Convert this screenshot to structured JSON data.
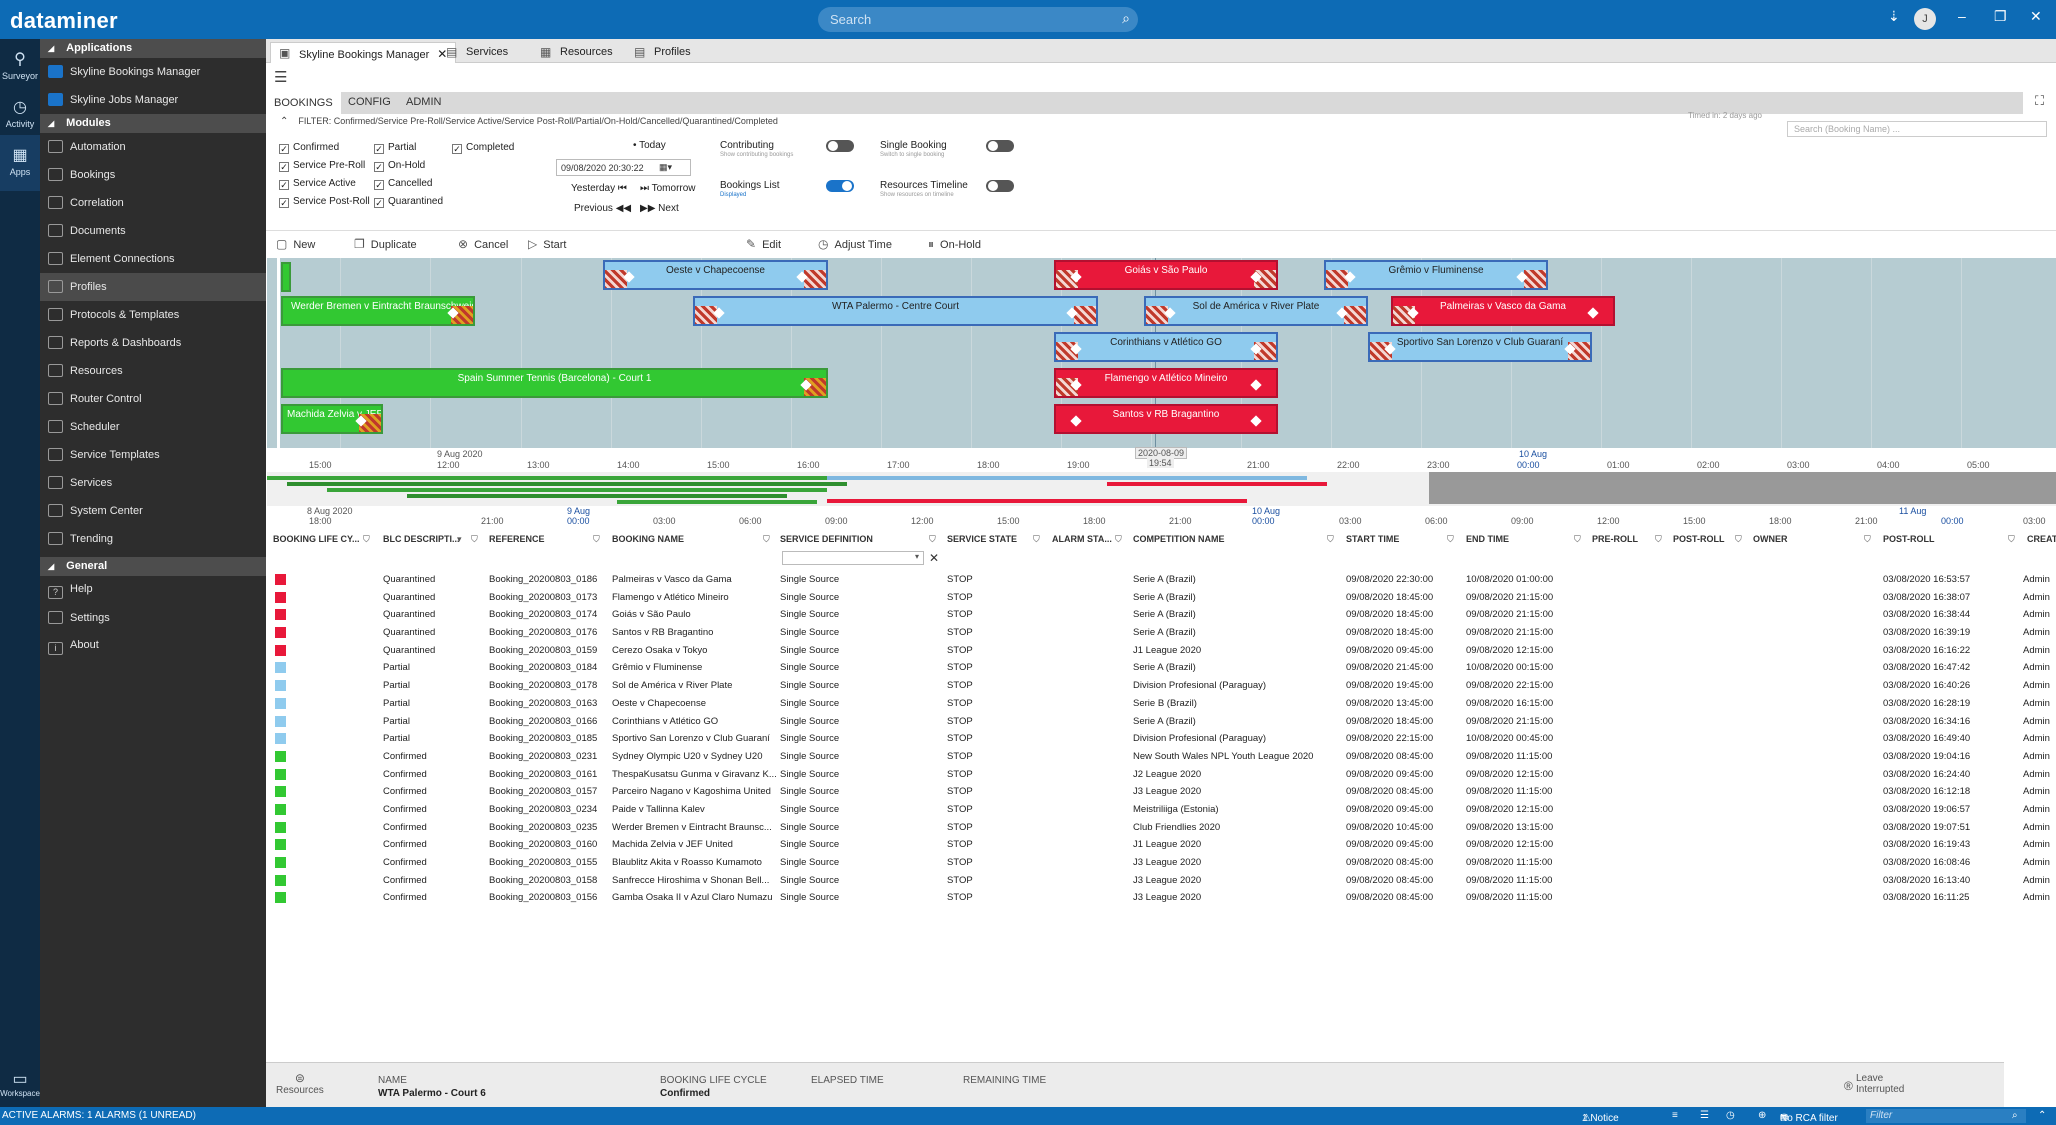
{
  "app": {
    "logo": "dataminer",
    "search_placeholder": "Search",
    "user_initial": "J"
  },
  "rail": [
    {
      "label": "Surveyor"
    },
    {
      "label": "Activity"
    },
    {
      "label": "Apps"
    }
  ],
  "workspace_label": "Workspace",
  "nav": {
    "applications_header": "Applications",
    "applications": [
      "Skyline Bookings Manager",
      "Skyline Jobs Manager"
    ],
    "modules_header": "Modules",
    "modules": [
      "Automation",
      "Bookings",
      "Correlation",
      "Documents",
      "Element Connections",
      "Profiles",
      "Protocols & Templates",
      "Reports & Dashboards",
      "Resources",
      "Router Control",
      "Scheduler",
      "Service Templates",
      "Services",
      "System Center",
      "Trending"
    ],
    "general_header": "General",
    "general": [
      "Help",
      "Settings",
      "About"
    ]
  },
  "tabs": [
    {
      "label": "Skyline Bookings Manager"
    },
    {
      "label": "Services"
    },
    {
      "label": "Resources"
    },
    {
      "label": "Profiles"
    }
  ],
  "subtabs": [
    "BOOKINGS",
    "CONFIG",
    "ADMIN"
  ],
  "filter_text": "FILTER: Confirmed/Service Pre-Roll/Service Active/Service Post-Roll/Partial/On-Hold/Cancelled/Quarantined/Completed",
  "filter_hint": "Timed in: 2 days ago",
  "booking_search_placeholder": "Search (Booking Name) ...",
  "checks": {
    "col1": [
      "Confirmed",
      "Service Pre-Roll",
      "Service Active",
      "Service Post-Roll"
    ],
    "col2": [
      "Partial",
      "On-Hold",
      "Cancelled",
      "Quarantined"
    ],
    "col3": [
      "Completed"
    ]
  },
  "datenav": {
    "today": "Today",
    "date": "09/08/2020 20:30:22",
    "yesterday": "Yesterday",
    "tomorrow": "Tomorrow",
    "previous": "Previous",
    "next": "Next"
  },
  "toggles": {
    "contributing": "Contributing",
    "contributing_sub": "Show contributing bookings",
    "single": "Single Booking",
    "single_sub": "Switch to single booking",
    "blist": "Bookings List",
    "blist_sub": "Displayed",
    "rtl": "Resources Timeline",
    "rtl_sub": "Show resources on timeline"
  },
  "toolbar": {
    "new": "New",
    "duplicate": "Duplicate",
    "cancel": "Cancel",
    "start": "Start",
    "edit": "Edit",
    "adjust": "Adjust Time",
    "onhold": "On-Hold"
  },
  "timeline": {
    "bars": [
      "Oeste v Chapecoense",
      "Goiás v São Paulo",
      "Grêmio v Fluminense",
      "Werder Bremen v Eintracht Braunschweig",
      "WTA Palermo - Centre Court",
      "Sol de América v River Plate",
      "Palmeiras v Vasco da Gama",
      "Corinthians v Atlético GO",
      "Sportivo San Lorenzo v Club Guaraní",
      "Spain Summer Tennis (Barcelona) - Court 1",
      "Flamengo v Atlético Mineiro",
      "Machida Zelvia v JEF...",
      "Santos v RB Bragantino"
    ],
    "date1": "9 Aug 2020",
    "date2": "10 Aug",
    "cursor": "2020-08-09",
    "cursor_time": "19:54",
    "ticks": [
      "15:00",
      "12:00",
      "13:00",
      "14:00",
      "15:00",
      "16:00",
      "17:00",
      "18:00",
      "19:00",
      "20:00",
      "21:00",
      "22:00",
      "23:00",
      "00:00",
      "01:00",
      "02:00",
      "03:00",
      "04:00",
      "05:00"
    ],
    "ov_ticks": [
      "18:00",
      "21:00",
      "00:00",
      "03:00",
      "06:00",
      "09:00",
      "12:00",
      "15:00",
      "18:00",
      "21:00",
      "00:00",
      "03:00",
      "06:00",
      "09:00",
      "12:00",
      "15:00",
      "18:00",
      "21:00",
      "00:00",
      "03:00"
    ],
    "ov_dates": [
      "8 Aug 2020",
      "9 Aug",
      "10 Aug",
      "11 Aug"
    ]
  },
  "columns": [
    "BOOKING LIFE CY...",
    "BLC DESCRIPTI...",
    "REFERENCE",
    "BOOKING NAME",
    "SERVICE DEFINITION",
    "SERVICE STATE",
    "ALARM STA...",
    "COMPETITION NAME",
    "START TIME",
    "END TIME",
    "PRE-ROLL",
    "POST-ROLL",
    "OWNER",
    "POST-ROLL",
    "CREATI"
  ],
  "rows": [
    {
      "color": "#e8183a",
      "blc": "Quarantined",
      "ref": "Booking_20200803_0186",
      "name": "Palmeiras v Vasco da Gama",
      "svc": "Single Source",
      "state": "STOP",
      "comp": "Serie A (Brazil)",
      "start": "09/08/2020 22:30:00",
      "end": "10/08/2020 01:00:00",
      "created": "03/08/2020 16:53:57",
      "owner": "Admin"
    },
    {
      "color": "#e8183a",
      "blc": "Quarantined",
      "ref": "Booking_20200803_0173",
      "name": "Flamengo v Atlético Mineiro",
      "svc": "Single Source",
      "state": "STOP",
      "comp": "Serie A (Brazil)",
      "start": "09/08/2020 18:45:00",
      "end": "09/08/2020 21:15:00",
      "created": "03/08/2020 16:38:07",
      "owner": "Admin"
    },
    {
      "color": "#e8183a",
      "blc": "Quarantined",
      "ref": "Booking_20200803_0174",
      "name": "Goiás v São Paulo",
      "svc": "Single Source",
      "state": "STOP",
      "comp": "Serie A (Brazil)",
      "start": "09/08/2020 18:45:00",
      "end": "09/08/2020 21:15:00",
      "created": "03/08/2020 16:38:44",
      "owner": "Admin"
    },
    {
      "color": "#e8183a",
      "blc": "Quarantined",
      "ref": "Booking_20200803_0176",
      "name": "Santos v RB Bragantino",
      "svc": "Single Source",
      "state": "STOP",
      "comp": "Serie A (Brazil)",
      "start": "09/08/2020 18:45:00",
      "end": "09/08/2020 21:15:00",
      "created": "03/08/2020 16:39:19",
      "owner": "Admin"
    },
    {
      "color": "#e8183a",
      "blc": "Quarantined",
      "ref": "Booking_20200803_0159",
      "name": "Cerezo Osaka v Tokyo",
      "svc": "Single Source",
      "state": "STOP",
      "comp": "J1 League 2020",
      "start": "09/08/2020 09:45:00",
      "end": "09/08/2020 12:15:00",
      "created": "03/08/2020 16:16:22",
      "owner": "Admin"
    },
    {
      "color": "#8fcbee",
      "blc": "Partial",
      "ref": "Booking_20200803_0184",
      "name": "Grêmio v Fluminense",
      "svc": "Single Source",
      "state": "STOP",
      "comp": "Serie A (Brazil)",
      "start": "09/08/2020 21:45:00",
      "end": "10/08/2020 00:15:00",
      "created": "03/08/2020 16:47:42",
      "owner": "Admin"
    },
    {
      "color": "#8fcbee",
      "blc": "Partial",
      "ref": "Booking_20200803_0178",
      "name": "Sol de América v River Plate",
      "svc": "Single Source",
      "state": "STOP",
      "comp": "Division Profesional (Paraguay)",
      "start": "09/08/2020 19:45:00",
      "end": "09/08/2020 22:15:00",
      "created": "03/08/2020 16:40:26",
      "owner": "Admin"
    },
    {
      "color": "#8fcbee",
      "blc": "Partial",
      "ref": "Booking_20200803_0163",
      "name": "Oeste v Chapecoense",
      "svc": "Single Source",
      "state": "STOP",
      "comp": "Serie B (Brazil)",
      "start": "09/08/2020 13:45:00",
      "end": "09/08/2020 16:15:00",
      "created": "03/08/2020 16:28:19",
      "owner": "Admin"
    },
    {
      "color": "#8fcbee",
      "blc": "Partial",
      "ref": "Booking_20200803_0166",
      "name": "Corinthians v Atlético GO",
      "svc": "Single Source",
      "state": "STOP",
      "comp": "Serie A (Brazil)",
      "start": "09/08/2020 18:45:00",
      "end": "09/08/2020 21:15:00",
      "created": "03/08/2020 16:34:16",
      "owner": "Admin"
    },
    {
      "color": "#8fcbee",
      "blc": "Partial",
      "ref": "Booking_20200803_0185",
      "name": "Sportivo San Lorenzo v Club Guaraní",
      "svc": "Single Source",
      "state": "STOP",
      "comp": "Division Profesional (Paraguay)",
      "start": "09/08/2020 22:15:00",
      "end": "10/08/2020 00:45:00",
      "created": "03/08/2020 16:49:40",
      "owner": "Admin"
    },
    {
      "color": "#32c832",
      "blc": "Confirmed",
      "ref": "Booking_20200803_0231",
      "name": "Sydney Olympic U20 v Sydney U20",
      "svc": "Single Source",
      "state": "STOP",
      "comp": "New South Wales NPL Youth League 2020",
      "start": "09/08/2020 08:45:00",
      "end": "09/08/2020 11:15:00",
      "created": "03/08/2020 19:04:16",
      "owner": "Admin"
    },
    {
      "color": "#32c832",
      "blc": "Confirmed",
      "ref": "Booking_20200803_0161",
      "name": "ThespaKusatsu Gunma v Giravanz K...",
      "svc": "Single Source",
      "state": "STOP",
      "comp": "J2 League 2020",
      "start": "09/08/2020 09:45:00",
      "end": "09/08/2020 12:15:00",
      "created": "03/08/2020 16:24:40",
      "owner": "Admin"
    },
    {
      "color": "#32c832",
      "blc": "Confirmed",
      "ref": "Booking_20200803_0157",
      "name": "Parceiro Nagano v Kagoshima United",
      "svc": "Single Source",
      "state": "STOP",
      "comp": "J3 League 2020",
      "start": "09/08/2020 08:45:00",
      "end": "09/08/2020 11:15:00",
      "created": "03/08/2020 16:12:18",
      "owner": "Admin"
    },
    {
      "color": "#32c832",
      "blc": "Confirmed",
      "ref": "Booking_20200803_0234",
      "name": "Paide v Tallinna Kalev",
      "svc": "Single Source",
      "state": "STOP",
      "comp": "Meistriliiga (Estonia)",
      "start": "09/08/2020 09:45:00",
      "end": "09/08/2020 12:15:00",
      "created": "03/08/2020 19:06:57",
      "owner": "Admin"
    },
    {
      "color": "#32c832",
      "blc": "Confirmed",
      "ref": "Booking_20200803_0235",
      "name": "Werder Bremen v Eintracht Braunsc...",
      "svc": "Single Source",
      "state": "STOP",
      "comp": "Club Friendlies 2020",
      "start": "09/08/2020 10:45:00",
      "end": "09/08/2020 13:15:00",
      "created": "03/08/2020 19:07:51",
      "owner": "Admin"
    },
    {
      "color": "#32c832",
      "blc": "Confirmed",
      "ref": "Booking_20200803_0160",
      "name": "Machida Zelvia v JEF United",
      "svc": "Single Source",
      "state": "STOP",
      "comp": "J1 League 2020",
      "start": "09/08/2020 09:45:00",
      "end": "09/08/2020 12:15:00",
      "created": "03/08/2020 16:19:43",
      "owner": "Admin"
    },
    {
      "color": "#32c832",
      "blc": "Confirmed",
      "ref": "Booking_20200803_0155",
      "name": "Blaublitz Akita v Roasso Kumamoto",
      "svc": "Single Source",
      "state": "STOP",
      "comp": "J3 League 2020",
      "start": "09/08/2020 08:45:00",
      "end": "09/08/2020 11:15:00",
      "created": "03/08/2020 16:08:46",
      "owner": "Admin"
    },
    {
      "color": "#32c832",
      "blc": "Confirmed",
      "ref": "Booking_20200803_0158",
      "name": "Sanfrecce Hiroshima v Shonan Bell...",
      "svc": "Single Source",
      "state": "STOP",
      "comp": "J3 League 2020",
      "start": "09/08/2020 08:45:00",
      "end": "09/08/2020 11:15:00",
      "created": "03/08/2020 16:13:40",
      "owner": "Admin"
    },
    {
      "color": "#32c832",
      "blc": "Confirmed",
      "ref": "Booking_20200803_0156",
      "name": "Gamba Osaka II v Azul Claro Numazu",
      "svc": "Single Source",
      "state": "STOP",
      "comp": "J3 League 2020",
      "start": "09/08/2020 08:45:00",
      "end": "09/08/2020 11:15:00",
      "created": "03/08/2020 16:11:25",
      "owner": "Admin"
    }
  ],
  "footer": {
    "resources": "Resources",
    "name_label": "NAME",
    "name_value": "WTA Palermo - Court 6",
    "blc_label": "BOOKING LIFE CYCLE",
    "blc_value": "Confirmed",
    "elapsed": "ELAPSED TIME",
    "remaining": "REMAINING TIME",
    "leave": "Leave",
    "interrupted": "Interrupted"
  },
  "statusbar": {
    "alarms": "ACTIVE ALARMS: 1 ALARMS (1 UNREAD)",
    "notice": "1 Notice",
    "rca": "No RCA filter",
    "filter": "Filter"
  }
}
